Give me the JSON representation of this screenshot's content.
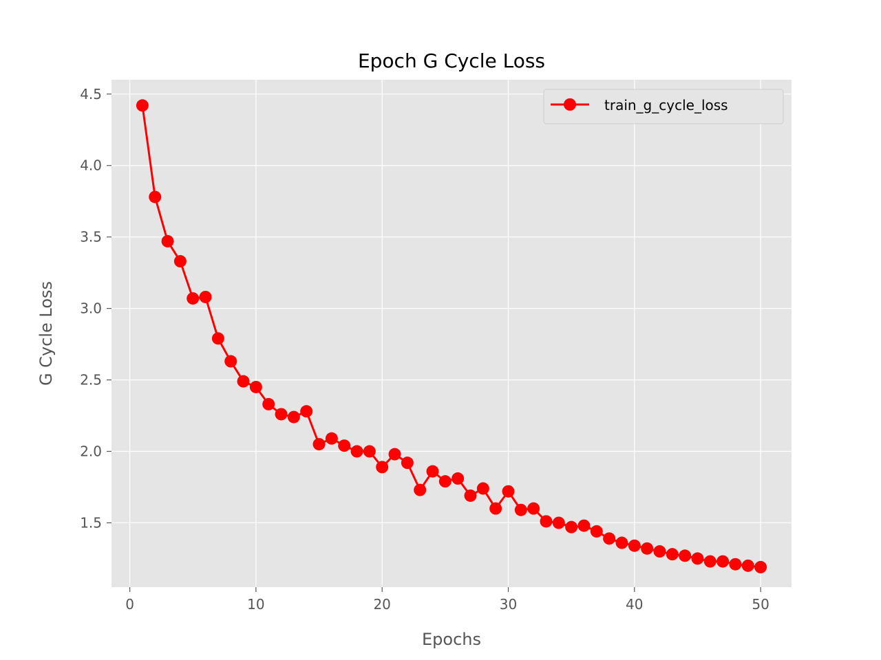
{
  "chart_data": {
    "type": "line",
    "title": "Epoch G Cycle Loss",
    "xlabel": "Epochs",
    "ylabel": "G Cycle Loss",
    "xlim": [
      -1.45,
      52.45
    ],
    "ylim": [
      1.05,
      4.6
    ],
    "xticks": [
      0,
      10,
      20,
      30,
      40,
      50
    ],
    "yticks": [
      1.5,
      2.0,
      2.5,
      3.0,
      3.5,
      4.0,
      4.5
    ],
    "ytick_labels": [
      "1.5",
      "2.0",
      "2.5",
      "3.0",
      "3.5",
      "4.0",
      "4.5"
    ],
    "grid": true,
    "legend_position": "top-right",
    "series": [
      {
        "name": "train_g_cycle_loss",
        "color": "#ff0000",
        "marker": "circle",
        "x": [
          1,
          2,
          3,
          4,
          5,
          6,
          7,
          8,
          9,
          10,
          11,
          12,
          13,
          14,
          15,
          16,
          17,
          18,
          19,
          20,
          21,
          22,
          23,
          24,
          25,
          26,
          27,
          28,
          29,
          30,
          31,
          32,
          33,
          34,
          35,
          36,
          37,
          38,
          39,
          40,
          41,
          42,
          43,
          44,
          45,
          46,
          47,
          48,
          49,
          50
        ],
        "y": [
          4.42,
          3.78,
          3.47,
          3.33,
          3.07,
          3.08,
          2.79,
          2.63,
          2.49,
          2.45,
          2.33,
          2.26,
          2.24,
          2.28,
          2.05,
          2.09,
          2.04,
          2.0,
          2.0,
          1.89,
          1.98,
          1.92,
          1.73,
          1.86,
          1.79,
          1.81,
          1.69,
          1.74,
          1.6,
          1.72,
          1.59,
          1.6,
          1.51,
          1.5,
          1.47,
          1.48,
          1.44,
          1.39,
          1.36,
          1.34,
          1.32,
          1.3,
          1.28,
          1.27,
          1.25,
          1.23,
          1.23,
          1.21,
          1.2,
          1.19
        ]
      }
    ]
  }
}
